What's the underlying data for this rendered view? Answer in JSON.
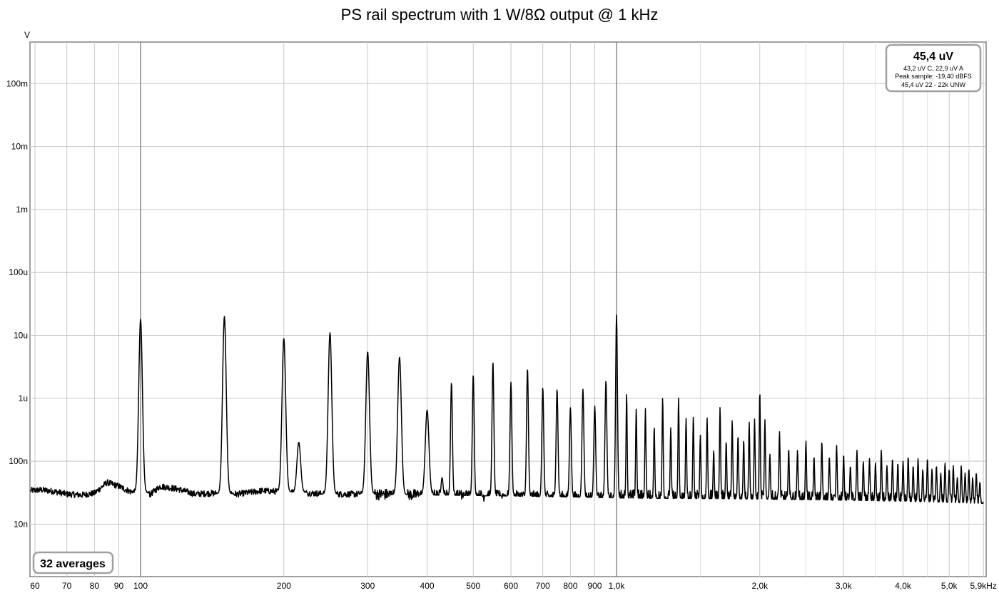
{
  "chart_data": {
    "type": "line",
    "title": "PS rail spectrum with 1 W/8Ω output @ 1 kHz",
    "ylabel": "V",
    "xlabel": "",
    "x_scale": "log",
    "y_scale": "log",
    "xlim": [
      58,
      6000
    ],
    "ylim": [
      3.5e-06,
      0.00015
    ],
    "y_ticks": [
      {
        "value": 0.1,
        "label": "100m"
      },
      {
        "value": 0.01,
        "label": "10m"
      },
      {
        "value": 0.001,
        "label": "1m"
      },
      {
        "value": 0.0001,
        "label": "100u"
      },
      {
        "value": 1e-05,
        "label": "10u"
      },
      {
        "value": 1e-06,
        "label": "1u"
      },
      {
        "value": 1e-07,
        "label": "100n"
      },
      {
        "value": 1e-08,
        "label": "10n"
      }
    ],
    "x_ticks": [
      {
        "value": 60,
        "label": "60"
      },
      {
        "value": 70,
        "label": "70"
      },
      {
        "value": 80,
        "label": "80"
      },
      {
        "value": 90,
        "label": "90"
      },
      {
        "value": 100,
        "label": "100"
      },
      {
        "value": 200,
        "label": "200"
      },
      {
        "value": 300,
        "label": "300"
      },
      {
        "value": 400,
        "label": "400"
      },
      {
        "value": 500,
        "label": "500"
      },
      {
        "value": 600,
        "label": "600"
      },
      {
        "value": 700,
        "label": "700"
      },
      {
        "value": 800,
        "label": "800"
      },
      {
        "value": 900,
        "label": "900"
      },
      {
        "value": 1000,
        "label": "1,0k"
      },
      {
        "value": 2000,
        "label": "2,0k"
      },
      {
        "value": 3000,
        "label": "3,0k"
      },
      {
        "value": 4000,
        "label": "4,0k"
      },
      {
        "value": 5000,
        "label": "5,0k"
      },
      {
        "value": 5900,
        "label": "5,9kHz"
      }
    ],
    "minor_x_gridlines": [
      1500,
      2500,
      3500,
      4500,
      5500
    ],
    "grid": true,
    "noise_floor": [
      [
        58,
        3.4e-08
      ],
      [
        62,
        3.5e-08
      ],
      [
        66,
        3.3e-08
      ],
      [
        70,
        3e-08
      ],
      [
        75,
        2.9e-08
      ],
      [
        80,
        3.1e-08
      ],
      [
        85,
        4.6e-08
      ],
      [
        90,
        4e-08
      ],
      [
        95,
        3.3e-08
      ],
      [
        105,
        3e-08
      ],
      [
        110,
        4e-08
      ],
      [
        120,
        3.6e-08
      ],
      [
        130,
        3e-08
      ],
      [
        140,
        3.1e-08
      ],
      [
        160,
        3e-08
      ],
      [
        180,
        3.4e-08
      ],
      [
        210,
        3.2e-08
      ],
      [
        250,
        3e-08
      ],
      [
        300,
        3e-08
      ],
      [
        400,
        2.9e-08
      ],
      [
        600,
        2.8e-08
      ],
      [
        800,
        2.7e-08
      ],
      [
        1000,
        2.6e-08
      ],
      [
        2000,
        2.5e-08
      ],
      [
        3000,
        2.4e-08
      ],
      [
        4000,
        2.3e-08
      ],
      [
        5000,
        2.2e-08
      ],
      [
        6000,
        2.1e-08
      ]
    ],
    "peaks": [
      {
        "f": 100,
        "v": 1.8e-05
      },
      {
        "f": 150,
        "v": 2e-05
      },
      {
        "f": 200,
        "v": 9e-06
      },
      {
        "f": 215,
        "v": 2e-07
      },
      {
        "f": 250,
        "v": 1.1e-05
      },
      {
        "f": 300,
        "v": 5.5e-06
      },
      {
        "f": 350,
        "v": 4.5e-06
      },
      {
        "f": 400,
        "v": 6.5e-07
      },
      {
        "f": 430,
        "v": 5.5e-08
      },
      {
        "f": 450,
        "v": 1.8e-06
      },
      {
        "f": 500,
        "v": 2.4e-06
      },
      {
        "f": 550,
        "v": 3.8e-06
      },
      {
        "f": 600,
        "v": 1.8e-06
      },
      {
        "f": 650,
        "v": 3e-06
      },
      {
        "f": 700,
        "v": 1.5e-06
      },
      {
        "f": 750,
        "v": 1.4e-06
      },
      {
        "f": 800,
        "v": 7.2e-07
      },
      {
        "f": 850,
        "v": 1.4e-06
      },
      {
        "f": 900,
        "v": 7.5e-07
      },
      {
        "f": 950,
        "v": 1.9e-06
      },
      {
        "f": 1000,
        "v": 2.1e-05
      },
      {
        "f": 1050,
        "v": 1.2e-06
      },
      {
        "f": 1100,
        "v": 6.9e-07
      },
      {
        "f": 1150,
        "v": 6.9e-07
      },
      {
        "f": 1200,
        "v": 3.6e-07
      },
      {
        "f": 1250,
        "v": 1.05e-06
      },
      {
        "f": 1300,
        "v": 3.4e-07
      },
      {
        "f": 1350,
        "v": 1.02e-06
      },
      {
        "f": 1400,
        "v": 4.8e-07
      },
      {
        "f": 1450,
        "v": 5.2e-07
      },
      {
        "f": 1500,
        "v": 2.6e-07
      },
      {
        "f": 1550,
        "v": 4.9e-07
      },
      {
        "f": 1600,
        "v": 1.5e-07
      },
      {
        "f": 1650,
        "v": 7.2e-07
      },
      {
        "f": 1700,
        "v": 2.1e-07
      },
      {
        "f": 1750,
        "v": 4.5e-07
      },
      {
        "f": 1800,
        "v": 2.6e-07
      },
      {
        "f": 1850,
        "v": 2.2e-07
      },
      {
        "f": 1900,
        "v": 4.2e-07
      },
      {
        "f": 1950,
        "v": 4.7e-07
      },
      {
        "f": 2000,
        "v": 1.3e-06
      },
      {
        "f": 2050,
        "v": 4.6e-07
      },
      {
        "f": 2100,
        "v": 1.3e-07
      },
      {
        "f": 2200,
        "v": 3e-07
      },
      {
        "f": 2300,
        "v": 1.6e-07
      },
      {
        "f": 2400,
        "v": 1.5e-07
      },
      {
        "f": 2500,
        "v": 2.1e-07
      },
      {
        "f": 2600,
        "v": 1.2e-07
      },
      {
        "f": 2700,
        "v": 2.1e-07
      },
      {
        "f": 2800,
        "v": 1.2e-07
      },
      {
        "f": 2900,
        "v": 1.8e-07
      },
      {
        "f": 3000,
        "v": 1.3e-07
      },
      {
        "f": 3100,
        "v": 8.5e-08
      },
      {
        "f": 3200,
        "v": 1.5e-07
      },
      {
        "f": 3300,
        "v": 1e-07
      },
      {
        "f": 3400,
        "v": 1.1e-07
      },
      {
        "f": 3500,
        "v": 9.5e-08
      },
      {
        "f": 3600,
        "v": 1.5e-07
      },
      {
        "f": 3700,
        "v": 8.5e-08
      },
      {
        "f": 3800,
        "v": 1.1e-07
      },
      {
        "f": 3900,
        "v": 9.5e-08
      },
      {
        "f": 4000,
        "v": 1e-07
      },
      {
        "f": 4100,
        "v": 1.2e-07
      },
      {
        "f": 4200,
        "v": 8.5e-08
      },
      {
        "f": 4300,
        "v": 1.1e-07
      },
      {
        "f": 4400,
        "v": 7.5e-08
      },
      {
        "f": 4500,
        "v": 1.1e-07
      },
      {
        "f": 4600,
        "v": 7.5e-08
      },
      {
        "f": 4700,
        "v": 8.5e-08
      },
      {
        "f": 4800,
        "v": 6.5e-08
      },
      {
        "f": 4900,
        "v": 9.5e-08
      },
      {
        "f": 5000,
        "v": 7.5e-08
      },
      {
        "f": 5100,
        "v": 8.5e-08
      },
      {
        "f": 5200,
        "v": 5.5e-08
      },
      {
        "f": 5300,
        "v": 8.5e-08
      },
      {
        "f": 5400,
        "v": 6.5e-08
      },
      {
        "f": 5500,
        "v": 7.5e-08
      },
      {
        "f": 5600,
        "v": 5.5e-08
      },
      {
        "f": 5700,
        "v": 6.5e-08
      },
      {
        "f": 5800,
        "v": 4.7e-08
      }
    ],
    "annotations": {
      "measurement_box": {
        "main": "45,4 uV",
        "line1": "43,2 uV C, 22,9 uV A",
        "line2": "Peak sample: -19,40 dBFS",
        "line3": "45,4 uV 22 - 22k UNW"
      },
      "averages": "32 averages"
    },
    "legend": "none",
    "colors": {
      "trace": "#000000",
      "grid": "#c8c8c8",
      "frame": "#a0a0a0",
      "background": "#ffffff"
    }
  }
}
